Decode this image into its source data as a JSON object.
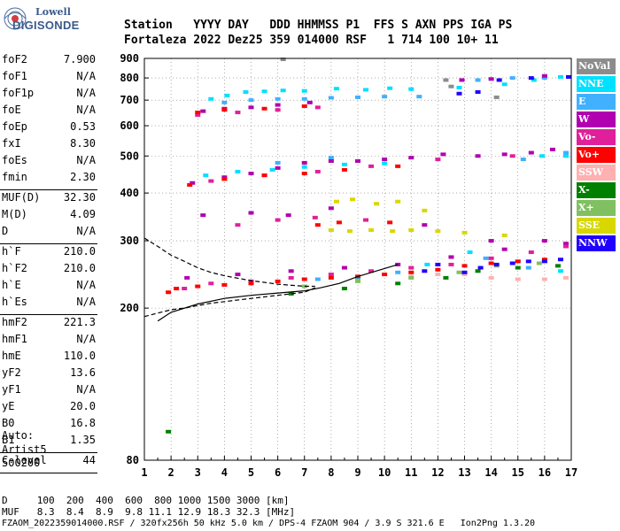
{
  "logo": {
    "line1": "Lowell",
    "line2": "DIGISONDE"
  },
  "header": {
    "line1": "Station   YYYY DAY   DDD HHMMSS P1  FFS S AXN PPS IGA PS",
    "line2": "Fortaleza 2022 Dez25 359 014000 RSF   1 714 100 10+ 11"
  },
  "params": [
    {
      "name": "foF2",
      "value": "7.900"
    },
    {
      "name": "foF1",
      "value": "N/A"
    },
    {
      "name": "foF1p",
      "value": "N/A"
    },
    {
      "name": "foE",
      "value": "N/A"
    },
    {
      "name": "foEp",
      "value": "0.53"
    },
    {
      "name": "fxI",
      "value": "8.30"
    },
    {
      "name": "foEs",
      "value": "N/A"
    },
    {
      "name": "fmin",
      "value": "2.30"
    },
    {
      "sep": true
    },
    {
      "name": "MUF(D)",
      "value": "32.30"
    },
    {
      "name": "M(D)",
      "value": "4.09"
    },
    {
      "name": "D",
      "value": "N/A"
    },
    {
      "sep": true
    },
    {
      "name": "h`F",
      "value": "210.0"
    },
    {
      "name": "h`F2",
      "value": "210.0"
    },
    {
      "name": "h`E",
      "value": "N/A"
    },
    {
      "name": "h`Es",
      "value": "N/A"
    },
    {
      "sep": true
    },
    {
      "name": "hmF2",
      "value": "221.3"
    },
    {
      "name": "hmF1",
      "value": "N/A"
    },
    {
      "name": "hmE",
      "value": "110.0"
    },
    {
      "name": "yF2",
      "value": "13.6"
    },
    {
      "name": "yF1",
      "value": "N/A"
    },
    {
      "name": "yE",
      "value": "20.0"
    },
    {
      "name": "B0",
      "value": "16.8"
    },
    {
      "name": "B1",
      "value": "1.35"
    },
    {
      "sep": true
    },
    {
      "name": "C-level",
      "value": "44"
    },
    {
      "sep": true
    }
  ],
  "auto": {
    "line1": "Auto:",
    "line2": "Artist5",
    "line3": "500200"
  },
  "legend": [
    {
      "label": "NoVal",
      "color": "#8c8c8c"
    },
    {
      "label": "NNE",
      "color": "#00e0ff"
    },
    {
      "label": "E",
      "color": "#40b0ff"
    },
    {
      "label": "W",
      "color": "#b000b0"
    },
    {
      "label": "Vo-",
      "color": "#e0209a"
    },
    {
      "label": "Vo+",
      "color": "#ff0000"
    },
    {
      "label": "SSW",
      "color": "#ffb0b0"
    },
    {
      "label": "X-",
      "color": "#008000"
    },
    {
      "label": "X+",
      "color": "#80c060"
    },
    {
      "label": "SSE",
      "color": "#d8d800"
    },
    {
      "label": "NNW",
      "color": "#2000ff"
    }
  ],
  "footer": {
    "line1": "D     100  200  400  600  800 1000 1500 3000 [km]",
    "line2": "MUF   8.3  8.4  8.9  9.8 11.1 12.9 18.3 32.3 [MHz]",
    "line3": "FZAOM_2022359014000.RSF / 320fx256h 50 kHz 5.0 km / DPS-4 FZAOM 904 / 3.9 S 321.6 E   Ion2Png 1.3.20"
  },
  "chart_data": {
    "type": "scatter",
    "title": "",
    "xlabel": "",
    "ylabel": "",
    "xlim": [
      1,
      17
    ],
    "ylim": [
      80,
      900
    ],
    "yscale": "log",
    "xticks": [
      1,
      2,
      3,
      4,
      5,
      6,
      7,
      8,
      9,
      10,
      11,
      12,
      13,
      14,
      15,
      16,
      17
    ],
    "yticks": [
      80,
      200,
      300,
      400,
      500,
      600,
      700,
      800,
      900
    ],
    "grid": true,
    "series": [
      {
        "name": "NoVal",
        "color": "#8c8c8c",
        "points": [
          [
            12.3,
            790
          ],
          [
            12.5,
            760
          ],
          [
            14.2,
            712
          ],
          [
            6.2,
            895
          ]
        ]
      },
      {
        "name": "NNE",
        "color": "#00e0ff",
        "points": [
          [
            3.5,
            705
          ],
          [
            4.1,
            720
          ],
          [
            4.8,
            735
          ],
          [
            5.5,
            738
          ],
          [
            6.2,
            742
          ],
          [
            7.0,
            740
          ],
          [
            8.2,
            750
          ],
          [
            9.3,
            745
          ],
          [
            10.2,
            752
          ],
          [
            11.0,
            748
          ],
          [
            12.8,
            755
          ],
          [
            14.5,
            770
          ],
          [
            15.6,
            790
          ],
          [
            16.6,
            805
          ],
          [
            16.8,
            500
          ],
          [
            15.9,
            500
          ],
          [
            3.3,
            445
          ],
          [
            4.5,
            455
          ],
          [
            5.8,
            460
          ],
          [
            7.0,
            468
          ],
          [
            8.5,
            475
          ],
          [
            10.0,
            478
          ],
          [
            16.6,
            250
          ],
          [
            15.0,
            265
          ],
          [
            13.2,
            280
          ],
          [
            11.6,
            260
          ],
          [
            9.0,
            240
          ]
        ]
      },
      {
        "name": "E",
        "color": "#40b0ff",
        "points": [
          [
            4.0,
            690
          ],
          [
            5.0,
            700
          ],
          [
            6.0,
            705
          ],
          [
            7.0,
            705
          ],
          [
            8.0,
            710
          ],
          [
            9.0,
            712
          ],
          [
            10.0,
            715
          ],
          [
            11.3,
            715
          ],
          [
            13.5,
            790
          ],
          [
            14.8,
            800
          ],
          [
            16.0,
            800
          ],
          [
            16.9,
            805
          ],
          [
            15.2,
            490
          ],
          [
            16.8,
            510
          ],
          [
            6.0,
            480
          ],
          [
            8.0,
            495
          ],
          [
            13.8,
            270
          ],
          [
            15.4,
            255
          ],
          [
            10.5,
            248
          ],
          [
            7.5,
            238
          ]
        ]
      },
      {
        "name": "W",
        "color": "#b000b0",
        "points": [
          [
            3.2,
            655
          ],
          [
            4.0,
            665
          ],
          [
            5.0,
            670
          ],
          [
            6.0,
            680
          ],
          [
            7.2,
            690
          ],
          [
            2.8,
            425
          ],
          [
            4.0,
            440
          ],
          [
            5.0,
            450
          ],
          [
            6.0,
            465
          ],
          [
            7.0,
            480
          ],
          [
            8.0,
            485
          ],
          [
            9.0,
            485
          ],
          [
            10.0,
            490
          ],
          [
            11.0,
            495
          ],
          [
            12.2,
            505
          ],
          [
            13.5,
            500
          ],
          [
            14.5,
            505
          ],
          [
            15.5,
            510
          ],
          [
            16.3,
            520
          ],
          [
            12.9,
            790
          ],
          [
            14.0,
            795
          ],
          [
            16.0,
            810
          ],
          [
            3.2,
            350
          ],
          [
            5.0,
            355
          ],
          [
            6.4,
            350
          ],
          [
            8.0,
            365
          ],
          [
            11.5,
            330
          ],
          [
            14.0,
            300
          ],
          [
            16.0,
            300
          ],
          [
            16.8,
            295
          ],
          [
            2.6,
            240
          ],
          [
            4.5,
            245
          ],
          [
            6.5,
            250
          ],
          [
            8.5,
            255
          ],
          [
            10.5,
            260
          ],
          [
            12.5,
            272
          ],
          [
            14.5,
            285
          ]
        ]
      },
      {
        "name": "Vo-",
        "color": "#e0209a",
        "points": [
          [
            3.0,
            640
          ],
          [
            4.5,
            650
          ],
          [
            6.0,
            660
          ],
          [
            7.5,
            670
          ],
          [
            3.5,
            430
          ],
          [
            5.5,
            445
          ],
          [
            7.5,
            455
          ],
          [
            9.5,
            470
          ],
          [
            12.0,
            490
          ],
          [
            14.8,
            500
          ],
          [
            2.5,
            225
          ],
          [
            3.5,
            232
          ],
          [
            5.0,
            235
          ],
          [
            6.5,
            240
          ],
          [
            8.0,
            245
          ],
          [
            9.5,
            250
          ],
          [
            11.0,
            255
          ],
          [
            12.5,
            260
          ],
          [
            14.0,
            270
          ],
          [
            15.5,
            280
          ],
          [
            16.8,
            290
          ],
          [
            4.5,
            330
          ],
          [
            6.0,
            340
          ],
          [
            7.4,
            345
          ],
          [
            9.3,
            340
          ]
        ]
      },
      {
        "name": "Vo+",
        "color": "#ff0000",
        "points": [
          [
            3.0,
            650
          ],
          [
            4.0,
            660
          ],
          [
            5.5,
            665
          ],
          [
            7.0,
            675
          ],
          [
            2.7,
            420
          ],
          [
            4.0,
            435
          ],
          [
            5.5,
            445
          ],
          [
            7.0,
            450
          ],
          [
            8.5,
            460
          ],
          [
            10.5,
            470
          ],
          [
            1.9,
            220
          ],
          [
            2.2,
            225
          ],
          [
            3.0,
            228
          ],
          [
            4.0,
            230
          ],
          [
            5.0,
            232
          ],
          [
            6.0,
            235
          ],
          [
            7.0,
            238
          ],
          [
            8.0,
            240
          ],
          [
            9.0,
            242
          ],
          [
            10.0,
            245
          ],
          [
            11.0,
            248
          ],
          [
            12.0,
            252
          ],
          [
            13.0,
            258
          ],
          [
            14.0,
            262
          ],
          [
            15.0,
            265
          ],
          [
            16.0,
            268
          ],
          [
            7.5,
            330
          ],
          [
            8.3,
            335
          ],
          [
            10.2,
            335
          ]
        ]
      },
      {
        "name": "SSW",
        "color": "#ffb0b0",
        "points": [
          [
            13.0,
            245
          ],
          [
            14.0,
            240
          ],
          [
            15.0,
            238
          ],
          [
            16.0,
            238
          ],
          [
            16.8,
            240
          ],
          [
            12.0,
            245
          ],
          [
            11.0,
            242
          ]
        ]
      },
      {
        "name": "X-",
        "color": "#008000",
        "points": [
          [
            1.9,
            95
          ],
          [
            6.5,
            218
          ],
          [
            8.5,
            225
          ],
          [
            10.5,
            232
          ],
          [
            12.3,
            240
          ],
          [
            13.5,
            250
          ],
          [
            15.0,
            255
          ],
          [
            16.5,
            258
          ]
        ]
      },
      {
        "name": "X+",
        "color": "#80c060",
        "points": [
          [
            7.0,
            228
          ],
          [
            9.0,
            235
          ],
          [
            11.0,
            240
          ],
          [
            12.8,
            248
          ],
          [
            14.2,
            258
          ],
          [
            15.8,
            262
          ]
        ]
      },
      {
        "name": "SSE",
        "color": "#d8d800",
        "points": [
          [
            8.0,
            320
          ],
          [
            8.7,
            318
          ],
          [
            9.5,
            320
          ],
          [
            10.3,
            318
          ],
          [
            11.0,
            320
          ],
          [
            12.0,
            318
          ],
          [
            8.2,
            380
          ],
          [
            8.8,
            385
          ],
          [
            9.7,
            375
          ],
          [
            10.5,
            380
          ],
          [
            11.5,
            360
          ],
          [
            13.0,
            315
          ],
          [
            14.5,
            310
          ]
        ]
      },
      {
        "name": "NNW",
        "color": "#2000ff",
        "points": [
          [
            13.0,
            248
          ],
          [
            13.6,
            255
          ],
          [
            14.2,
            260
          ],
          [
            14.8,
            262
          ],
          [
            15.4,
            265
          ],
          [
            16.0,
            265
          ],
          [
            16.6,
            268
          ],
          [
            12.8,
            728
          ],
          [
            13.5,
            735
          ],
          [
            14.3,
            790
          ],
          [
            15.5,
            800
          ],
          [
            16.9,
            805
          ],
          [
            12.0,
            260
          ],
          [
            11.5,
            250
          ]
        ]
      }
    ],
    "curves": [
      {
        "name": "profile-solid",
        "x": [
          1.5,
          2,
          3,
          4,
          5,
          6,
          7,
          7.6,
          8.3,
          9,
          10.5
        ],
        "y": [
          185,
          195,
          205,
          212,
          216,
          219,
          222,
          226,
          232,
          242,
          260
        ]
      },
      {
        "name": "profile-dashed-upper",
        "x": [
          1.0,
          1.5,
          2,
          2.5,
          3,
          3.5,
          4,
          5,
          6,
          7,
          7.4
        ],
        "y": [
          305,
          290,
          275,
          265,
          255,
          248,
          243,
          236,
          231,
          228,
          228
        ]
      },
      {
        "name": "profile-dashed-lower",
        "x": [
          1.0,
          1.5,
          2,
          2.5,
          3,
          3.5,
          4,
          5,
          6,
          7,
          7.4
        ],
        "y": [
          190,
          194,
          198,
          200,
          203,
          206,
          208,
          212,
          216,
          220,
          226
        ]
      }
    ]
  }
}
